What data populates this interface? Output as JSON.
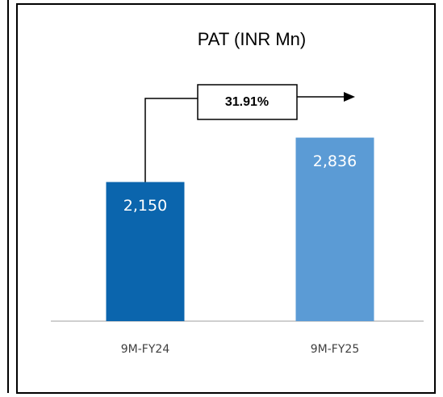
{
  "chart_data": {
    "type": "bar",
    "title": "PAT (INR Mn)",
    "categories": [
      "9M-FY24",
      "9M-FY25"
    ],
    "values": [
      2150,
      2836
    ],
    "value_labels": [
      "2,150",
      "2,836"
    ],
    "colors": [
      "#0b65ad",
      "#5b9bd5"
    ],
    "annotation": "31.91%"
  }
}
